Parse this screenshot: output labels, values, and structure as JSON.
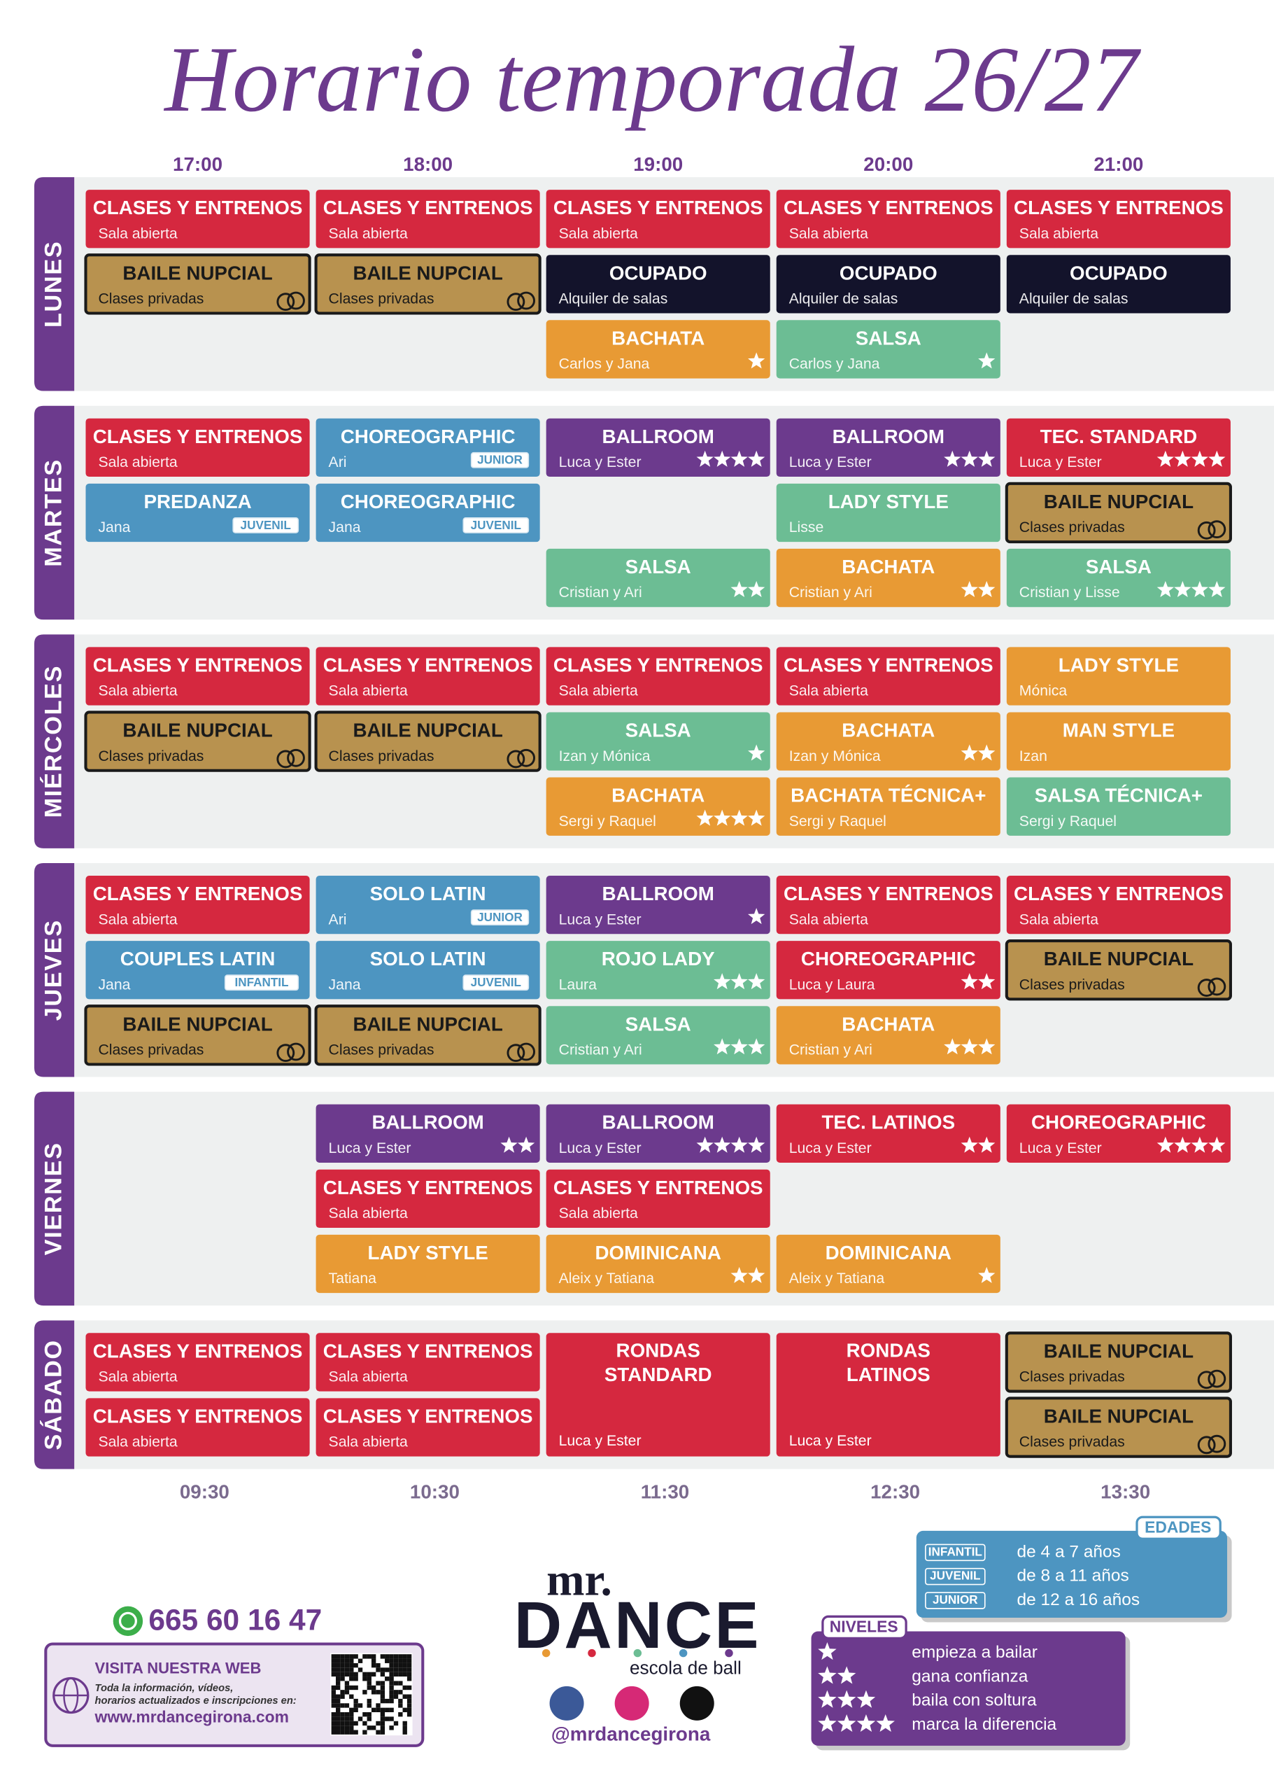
{
  "header": {
    "title": "Horario temporada 26/27",
    "times_top": [
      "17:00",
      "18:00",
      "19:00",
      "20:00",
      "21:00"
    ],
    "times_bottom": [
      "09:30",
      "10:30",
      "11:30",
      "12:30",
      "13:30"
    ]
  },
  "days": [
    {
      "name": "LUNES",
      "rows": [
        [
          {
            "title": "CLASES Y ENTRENOS",
            "sub": "Sala abierta",
            "color": "#d5283f"
          },
          {
            "title": "CLASES Y ENTRENOS",
            "sub": "Sala abierta",
            "color": "#d5283f"
          },
          {
            "title": "CLASES Y ENTRENOS",
            "sub": "Sala abierta",
            "color": "#d5283f"
          },
          {
            "title": "CLASES Y ENTRENOS",
            "sub": "Sala abierta",
            "color": "#d5283f"
          },
          {
            "title": "CLASES Y ENTRENOS",
            "sub": "Sala abierta",
            "color": "#d5283f"
          }
        ],
        [
          {
            "title": "BAILE NUPCIAL",
            "sub": "Clases privadas",
            "color": "#b8924f",
            "ring": true
          },
          {
            "title": "BAILE NUPCIAL",
            "sub": "Clases privadas",
            "color": "#b8924f",
            "ring": true
          },
          {
            "title": "OCUPADO",
            "sub": "Alquiler de salas",
            "color": "#13132b"
          },
          {
            "title": "OCUPADO",
            "sub": "Alquiler de salas",
            "color": "#13132b"
          },
          {
            "title": "OCUPADO",
            "sub": "Alquiler de salas",
            "color": "#13132b"
          }
        ],
        [
          null,
          null,
          {
            "title": "BACHATA",
            "sub": "Carlos y Jana",
            "color": "#e89a34",
            "stars": 1
          },
          {
            "title": "SALSA",
            "sub": "Carlos y Jana",
            "color": "#6cbd94",
            "stars": 1
          },
          null
        ]
      ]
    },
    {
      "name": "MARTES",
      "rows": [
        [
          {
            "title": "CLASES Y ENTRENOS",
            "sub": "Sala abierta",
            "color": "#d5283f"
          },
          {
            "title": "CHOREOGRAPHIC",
            "sub": "Ari",
            "color": "#4d95c1",
            "badge": "JUNIOR"
          },
          {
            "title": "BALLROOM",
            "sub": "Luca y Ester",
            "color": "#6c3a8d",
            "stars": 4
          },
          {
            "title": "BALLROOM",
            "sub": "Luca y Ester",
            "color": "#6c3a8d",
            "stars": 3
          },
          {
            "title": "TEC. STANDARD",
            "sub": "Luca y Ester",
            "color": "#d5283f",
            "stars": 4
          }
        ],
        [
          {
            "title": "PREDANZA",
            "sub": "Jana",
            "color": "#4d95c1",
            "badge": "JUVENIL"
          },
          {
            "title": "CHOREOGRAPHIC",
            "sub": "Jana",
            "color": "#4d95c1",
            "badge": "JUVENIL"
          },
          null,
          {
            "title": "LADY STYLE",
            "sub": "Lisse",
            "color": "#6cbd94"
          },
          {
            "title": "BAILE NUPCIAL",
            "sub": "Clases privadas",
            "color": "#b8924f",
            "ring": true
          }
        ],
        [
          null,
          null,
          {
            "title": "SALSA",
            "sub": "Cristian y Ari",
            "color": "#6cbd94",
            "stars": 2
          },
          {
            "title": "BACHATA",
            "sub": "Cristian y Ari",
            "color": "#e89a34",
            "stars": 2
          },
          {
            "title": "SALSA",
            "sub": "Cristian y Lisse",
            "color": "#6cbd94",
            "stars": 4
          }
        ]
      ]
    },
    {
      "name": "MIÉRCOLES",
      "rows": [
        [
          {
            "title": "CLASES Y ENTRENOS",
            "sub": "Sala abierta",
            "color": "#d5283f"
          },
          {
            "title": "CLASES Y ENTRENOS",
            "sub": "Sala abierta",
            "color": "#d5283f"
          },
          {
            "title": "CLASES Y ENTRENOS",
            "sub": "Sala abierta",
            "color": "#d5283f"
          },
          {
            "title": "CLASES Y ENTRENOS",
            "sub": "Sala abierta",
            "color": "#d5283f"
          },
          {
            "title": "LADY STYLE",
            "sub": "Mónica",
            "color": "#e89a34"
          }
        ],
        [
          {
            "title": "BAILE NUPCIAL",
            "sub": "Clases privadas",
            "color": "#b8924f",
            "ring": true
          },
          {
            "title": "BAILE NUPCIAL",
            "sub": "Clases privadas",
            "color": "#b8924f",
            "ring": true
          },
          {
            "title": "SALSA",
            "sub": "Izan y Mónica",
            "color": "#6cbd94",
            "stars": 1
          },
          {
            "title": "BACHATA",
            "sub": "Izan y Mónica",
            "color": "#e89a34",
            "stars": 2
          },
          {
            "title": "MAN STYLE",
            "sub": "Izan",
            "color": "#e89a34"
          }
        ],
        [
          null,
          null,
          {
            "title": "BACHATA",
            "sub": "Sergi y Raquel",
            "color": "#e89a34",
            "stars": 4
          },
          {
            "title": "BACHATA TÉCNICA+",
            "sub": "Sergi y Raquel",
            "color": "#e89a34"
          },
          {
            "title": "SALSA TÉCNICA+",
            "sub": "Sergi y Raquel",
            "color": "#6cbd94"
          }
        ]
      ]
    },
    {
      "name": "JUEVES",
      "rows": [
        [
          {
            "title": "CLASES Y ENTRENOS",
            "sub": "Sala abierta",
            "color": "#d5283f"
          },
          {
            "title": "SOLO LATIN",
            "sub": "Ari",
            "color": "#4d95c1",
            "badge": "JUNIOR"
          },
          {
            "title": "BALLROOM",
            "sub": "Luca y Ester",
            "color": "#6c3a8d",
            "stars": 1
          },
          {
            "title": "CLASES Y ENTRENOS",
            "sub": "Sala abierta",
            "color": "#d5283f"
          },
          {
            "title": "CLASES Y ENTRENOS",
            "sub": "Sala abierta",
            "color": "#d5283f"
          }
        ],
        [
          {
            "title": "COUPLES LATIN",
            "sub": "Jana",
            "color": "#4d95c1",
            "badge": "INFANTIL"
          },
          {
            "title": "SOLO LATIN",
            "sub": "Jana",
            "color": "#4d95c1",
            "badge": "JUVENIL"
          },
          {
            "title": "ROJO LADY",
            "sub": "Laura",
            "color": "#6cbd94",
            "stars": 3
          },
          {
            "title": "CHOREOGRAPHIC",
            "sub": "Luca y Laura",
            "color": "#d5283f",
            "stars": 2
          },
          {
            "title": "BAILE NUPCIAL",
            "sub": "Clases privadas",
            "color": "#b8924f",
            "ring": true
          }
        ],
        [
          {
            "title": "BAILE NUPCIAL",
            "sub": "Clases privadas",
            "color": "#b8924f",
            "ring": true
          },
          {
            "title": "BAILE NUPCIAL",
            "sub": "Clases privadas",
            "color": "#b8924f",
            "ring": true
          },
          {
            "title": "SALSA",
            "sub": "Cristian y Ari",
            "color": "#6cbd94",
            "stars": 3
          },
          {
            "title": "BACHATA",
            "sub": "Cristian y Ari",
            "color": "#e89a34",
            "stars": 3
          },
          null
        ]
      ]
    },
    {
      "name": "VIERNES",
      "rows": [
        [
          null,
          {
            "title": "BALLROOM",
            "sub": "Luca y Ester",
            "color": "#6c3a8d",
            "stars": 2
          },
          {
            "title": "BALLROOM",
            "sub": "Luca y Ester",
            "color": "#6c3a8d",
            "stars": 4
          },
          {
            "title": "TEC. LATINOS",
            "sub": "Luca y Ester",
            "color": "#d5283f",
            "stars": 2
          },
          {
            "title": "CHOREOGRAPHIC",
            "sub": "Luca y Ester",
            "color": "#d5283f",
            "stars": 4
          }
        ],
        [
          null,
          {
            "title": "CLASES Y ENTRENOS",
            "sub": "Sala abierta",
            "color": "#d5283f"
          },
          {
            "title": "CLASES Y ENTRENOS",
            "sub": "Sala abierta",
            "color": "#d5283f"
          },
          null,
          null
        ],
        [
          null,
          {
            "title": "LADY STYLE",
            "sub": "Tatiana",
            "color": "#e89a34"
          },
          {
            "title": "DOMINICANA",
            "sub": "Aleix y Tatiana",
            "color": "#e89a34",
            "stars": 2
          },
          {
            "title": "DOMINICANA",
            "sub": "Aleix y Tatiana",
            "color": "#e89a34",
            "stars": 1
          },
          null
        ]
      ]
    },
    {
      "name": "SÁBADO",
      "rows": [
        [
          {
            "title": "CLASES Y ENTRENOS",
            "sub": "Sala abierta",
            "color": "#d5283f"
          },
          {
            "title": "CLASES Y ENTRENOS",
            "sub": "Sala abierta",
            "color": "#d5283f"
          },
          {
            "title": "RONDAS STANDARD",
            "sub": "Luca y Ester",
            "color": "#d5283f",
            "rowspan": 2
          },
          {
            "title": "RONDAS LATINOS",
            "sub": "Luca y Ester",
            "color": "#d5283f",
            "rowspan": 2
          },
          {
            "title": "BAILE NUPCIAL",
            "sub": "Clases privadas",
            "color": "#b8924f",
            "ring": true
          }
        ],
        [
          {
            "title": "CLASES Y ENTRENOS",
            "sub": "Sala abierta",
            "color": "#d5283f"
          },
          {
            "title": "CLASES Y ENTRENOS",
            "sub": "Sala abierta",
            "color": "#d5283f"
          },
          null,
          null,
          {
            "title": "BAILE NUPCIAL",
            "sub": "Clases privadas",
            "color": "#b8924f",
            "ring": true
          }
        ]
      ]
    }
  ],
  "edades": {
    "title": "EDADES",
    "items": [
      {
        "badge": "INFANTIL",
        "text": "de 4 a 7 años"
      },
      {
        "badge": "JUVENIL",
        "text": "de 8 a 11 años"
      },
      {
        "badge": "JUNIOR",
        "text": "de 12 a 16 años"
      }
    ]
  },
  "niveles": {
    "title": "NIVELES",
    "items": [
      {
        "stars": 1,
        "text": "empieza a bailar"
      },
      {
        "stars": 2,
        "text": "gana confianza"
      },
      {
        "stars": 3,
        "text": "baila con soltura"
      },
      {
        "stars": 4,
        "text": "marca la diferencia"
      }
    ]
  },
  "contact": {
    "phone": "665 60 16 47",
    "web_title": "VISITA NUESTRA WEB",
    "web_lines": [
      "Toda la información, vídeos,",
      "horarios actualizados e inscripciones en:"
    ],
    "url": "www.mrdancegirona.com"
  },
  "logo": {
    "top": "mr.",
    "main": "DANCE",
    "tagline": "escola de ball",
    "handle": "@mrdancegirona"
  }
}
